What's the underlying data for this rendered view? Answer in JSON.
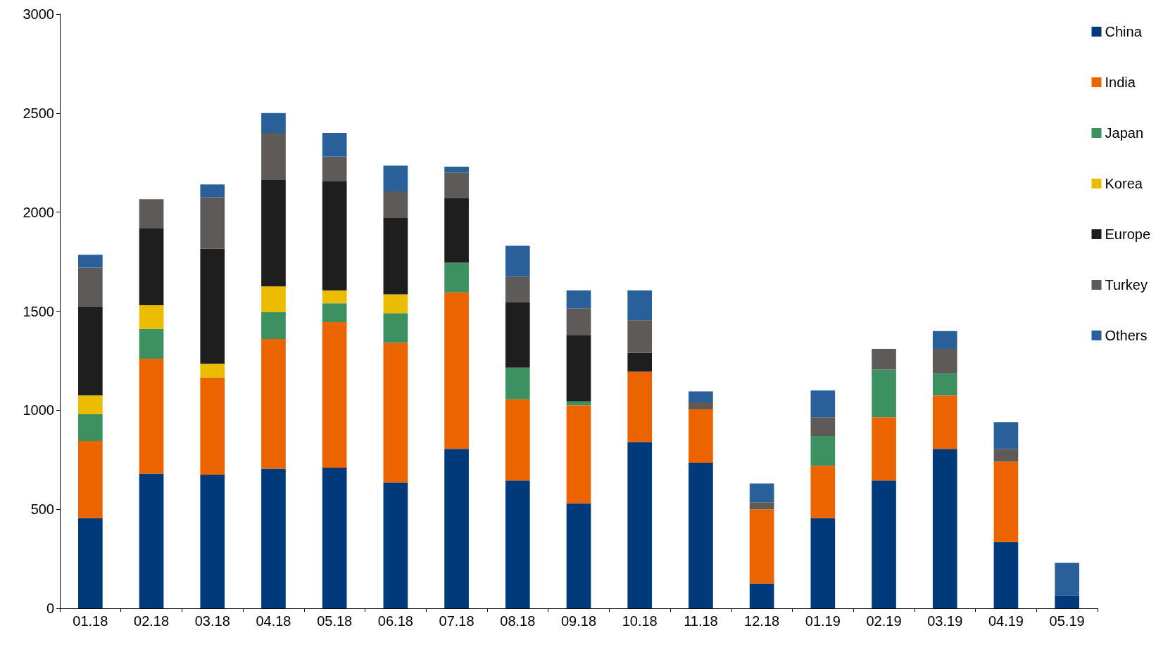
{
  "chart_data": {
    "type": "bar",
    "stacked": true,
    "legend": "top right",
    "grid": false,
    "categories": [
      "01.18",
      "02.18",
      "03.18",
      "04.18",
      "05.18",
      "06.18",
      "07.18",
      "08.18",
      "09.18",
      "10.18",
      "11.18",
      "12.18",
      "01.19",
      "02.19",
      "03.19",
      "04.19",
      "05.19"
    ],
    "ylim": [
      0,
      3000
    ],
    "yticks": [
      0,
      500,
      1000,
      1500,
      2000,
      2500,
      3000
    ],
    "series": [
      {
        "name": "China",
        "color": "#003a7a",
        "values": [
          455,
          680,
          675,
          705,
          710,
          635,
          805,
          645,
          530,
          840,
          735,
          125,
          455,
          645,
          805,
          335,
          65
        ]
      },
      {
        "name": "India",
        "color": "#eb6400",
        "values": [
          390,
          580,
          490,
          655,
          735,
          705,
          790,
          410,
          495,
          355,
          270,
          375,
          265,
          320,
          270,
          405,
          null
        ]
      },
      {
        "name": "Japan",
        "color": "#3d9160",
        "values": [
          135,
          150,
          null,
          135,
          95,
          150,
          150,
          160,
          20,
          null,
          null,
          null,
          150,
          240,
          110,
          null,
          null
        ]
      },
      {
        "name": "Korea",
        "color": "#ecbc00",
        "values": [
          95,
          120,
          70,
          130,
          65,
          95,
          null,
          null,
          null,
          null,
          null,
          null,
          null,
          null,
          null,
          null,
          null
        ]
      },
      {
        "name": "Europe",
        "color": "#1e1e1e",
        "values": [
          450,
          390,
          580,
          540,
          550,
          385,
          325,
          330,
          335,
          95,
          null,
          null,
          null,
          null,
          null,
          null,
          null
        ]
      },
      {
        "name": "Turkey",
        "color": "#5e5a57",
        "values": [
          195,
          145,
          260,
          235,
          125,
          135,
          130,
          130,
          135,
          165,
          35,
          35,
          95,
          105,
          125,
          65,
          null
        ]
      },
      {
        "name": "Others",
        "color": "#2a6099",
        "values": [
          65,
          null,
          65,
          100,
          120,
          130,
          30,
          155,
          90,
          150,
          55,
          95,
          135,
          null,
          90,
          135,
          165
        ]
      }
    ]
  }
}
